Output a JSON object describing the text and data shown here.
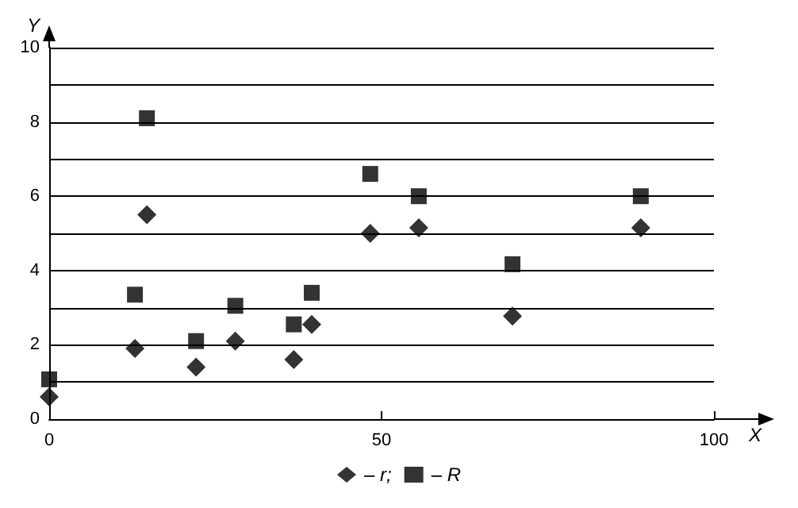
{
  "chart_data": {
    "type": "scatter",
    "xlabel": "X",
    "ylabel": "Y",
    "xlim": [
      0,
      100
    ],
    "xticks": [
      0,
      50,
      100
    ],
    "ylim": [
      0,
      10
    ],
    "yticks": [
      0,
      {
        "value": 1,
        "label": null
      },
      2,
      {
        "value": 3,
        "label": null
      },
      4,
      {
        "value": 5,
        "label": null
      },
      6,
      {
        "value": 7,
        "label": null
      },
      8,
      {
        "value": 9,
        "label": null
      },
      10
    ],
    "grid": "y",
    "legend": "bottom",
    "x": [
      0,
      12.9,
      14.7,
      22.1,
      28,
      36.8,
      39.5,
      48.3,
      55.6,
      69.7,
      89
    ],
    "series": [
      {
        "name": "– r;",
        "color": "#000000",
        "marker": "diamond",
        "values": [
          0.6,
          1.9,
          5.5,
          1.4,
          2.1,
          1.6,
          2.55,
          5.0,
          5.15,
          2.77,
          5.15
        ]
      },
      {
        "name": "– R",
        "color": "#000000",
        "marker": "square",
        "values": [
          1.07,
          3.35,
          8.1,
          2.1,
          3.05,
          2.55,
          3.4,
          6.6,
          6.0,
          4.17,
          6.0
        ]
      }
    ]
  }
}
